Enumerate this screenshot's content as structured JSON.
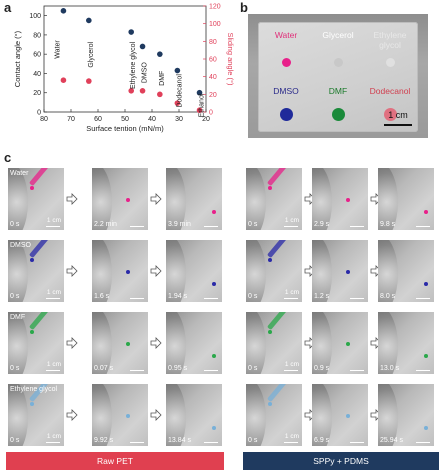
{
  "panels": {
    "a": "a",
    "b": "b",
    "c": "c"
  },
  "chart_data": {
    "type": "scatter",
    "xlabel": "Surface tention (mN/m)",
    "ylabel_left": "Contact angle (°)",
    "ylabel_right": "Sliding angle (°)",
    "x_ticks": [
      "80",
      "70",
      "60",
      "50",
      "40",
      "30",
      "20"
    ],
    "y_ticks_left": [
      "0",
      "20",
      "40",
      "60",
      "80",
      "100"
    ],
    "y_ticks_right": [
      "0",
      "20",
      "40",
      "60",
      "80",
      "100",
      "120"
    ],
    "xlim": [
      80,
      20
    ],
    "ylim_left": [
      0,
      110
    ],
    "ylim_right": [
      0,
      120
    ],
    "annotations": [
      "Water",
      "Glycerol",
      "Ethylene glycol",
      "DMSO",
      "DMF",
      "Dodecanol",
      "Ethanol"
    ],
    "series": [
      {
        "name": "Contact angle",
        "color": "#1f3a5f",
        "x": [
          72.8,
          63.4,
          47.7,
          43.5,
          37.1,
          30.6,
          22.4
        ],
        "y": [
          105,
          95,
          83,
          68,
          60,
          43,
          20
        ]
      },
      {
        "name": "Sliding angle",
        "color": "#e0405a",
        "x": [
          72.8,
          63.4,
          47.7,
          43.5,
          37.1,
          30.6,
          22.4
        ],
        "y": [
          36,
          35,
          24,
          24,
          20,
          10,
          2
        ]
      }
    ]
  },
  "photo_b": {
    "labels": [
      "Water",
      "Glycerol",
      "Ethylene glycol",
      "DMSO",
      "DMF",
      "Dodecanol"
    ],
    "label_colors": [
      "#e0307a",
      "#ffffff",
      "#e8e8e8",
      "#2a2a8a",
      "#1a7a2a",
      "#d04050"
    ],
    "drop_colors": [
      "#e8208a",
      "#c8c8c8",
      "#e0e0e0",
      "#1f2a9a",
      "#1a8a3a",
      "#e07080"
    ],
    "scale": "1 cm"
  },
  "grid": {
    "rows": [
      {
        "liquid": "Water",
        "color": "#e8208a",
        "left": [
          "0 s",
          "2.2 min",
          "3.9 min"
        ],
        "right": [
          "0 s",
          "2.9 s",
          "9.8 s"
        ]
      },
      {
        "liquid": "DMSO",
        "color": "#2a2aa8",
        "left": [
          "0 s",
          "1.6 s",
          "1.94 s"
        ],
        "right": [
          "0 s",
          "1.2 s",
          "8.0 s"
        ]
      },
      {
        "liquid": "DMF",
        "color": "#2aa84a",
        "left": [
          "0 s",
          "0.07 s",
          "0.95 s"
        ],
        "right": [
          "0 s",
          "0.9 s",
          "13.0 s"
        ]
      },
      {
        "liquid": "Ethylene glycol",
        "color": "#78b0d8",
        "left": [
          "0 s",
          "9.92 s",
          "13.84 s"
        ],
        "right": [
          "0 s",
          "6.9 s",
          "25.94 s"
        ]
      }
    ],
    "scale": "1 cm",
    "group_left": "Raw PET",
    "group_right": "SPPy + PDMS",
    "group_left_color": "#e04050",
    "group_right_color": "#1f3a5f"
  }
}
